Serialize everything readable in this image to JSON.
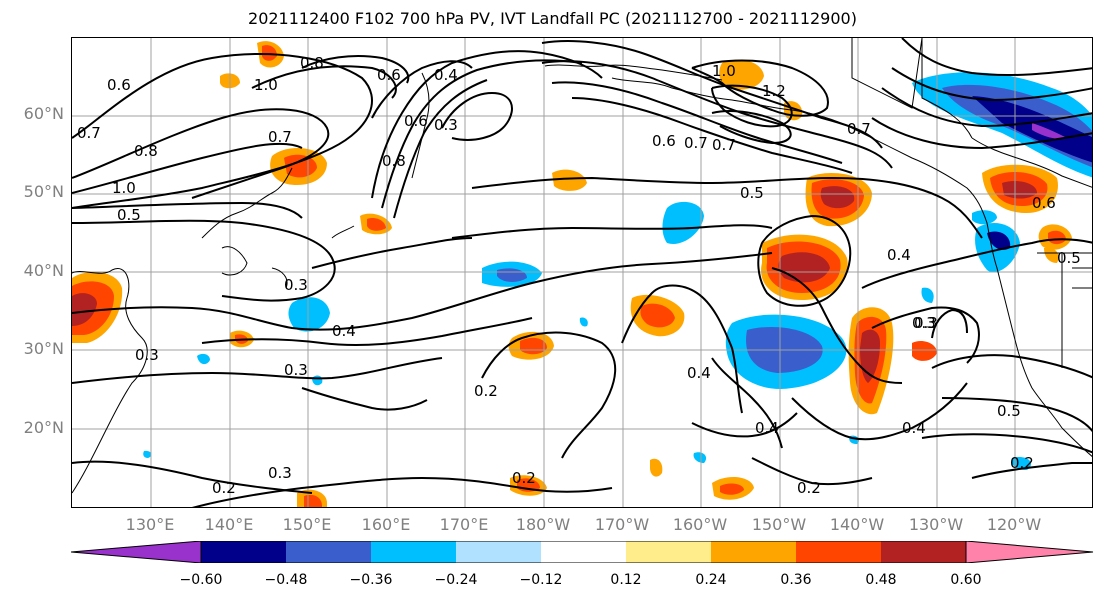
{
  "title": "2021112400 F102 700 hPa PV, IVT Landfall PC (2021112700 - 2021112900)",
  "lat_labels": [
    "60°N",
    "50°N",
    "40°N",
    "30°N",
    "20°N"
  ],
  "lon_labels": [
    "130°E",
    "140°E",
    "150°E",
    "160°E",
    "170°E",
    "180°W",
    "170°W",
    "160°W",
    "150°W",
    "140°W",
    "130°W",
    "120°W"
  ],
  "colorbar": {
    "ticks": [
      "−0.60",
      "−0.48",
      "−0.36",
      "−0.24",
      "−0.12",
      "0.12",
      "0.24",
      "0.36",
      "0.48",
      "0.60"
    ],
    "colors": [
      "#9932CC",
      "#00008B",
      "#3A5FCD",
      "#00BFFF",
      "#B0E2FF",
      "#FFFFFF",
      "#FFEC8B",
      "#FFA500",
      "#FF4500",
      "#B22222",
      "#FF82AB"
    ]
  },
  "contour_labels": [
    "0.8",
    "1.0",
    "0.6",
    "0.7",
    "0.8",
    "1.0",
    "0.5",
    "0.7",
    "0.6",
    "0.4",
    "0.3",
    "0.6",
    "0.8",
    "1.0",
    "0.6",
    "0.7",
    "0.7",
    "1.2",
    "0.7",
    "0.5",
    "0.6",
    "0.5",
    "0.4",
    "0.3",
    "0.3",
    "0.4",
    "0.3",
    "0.3",
    "0.2",
    "0.4",
    "0.4",
    "0.4",
    "0.3",
    "0.5",
    "0.2",
    "0.2",
    "0.3",
    "0.2",
    "0.2"
  ]
}
